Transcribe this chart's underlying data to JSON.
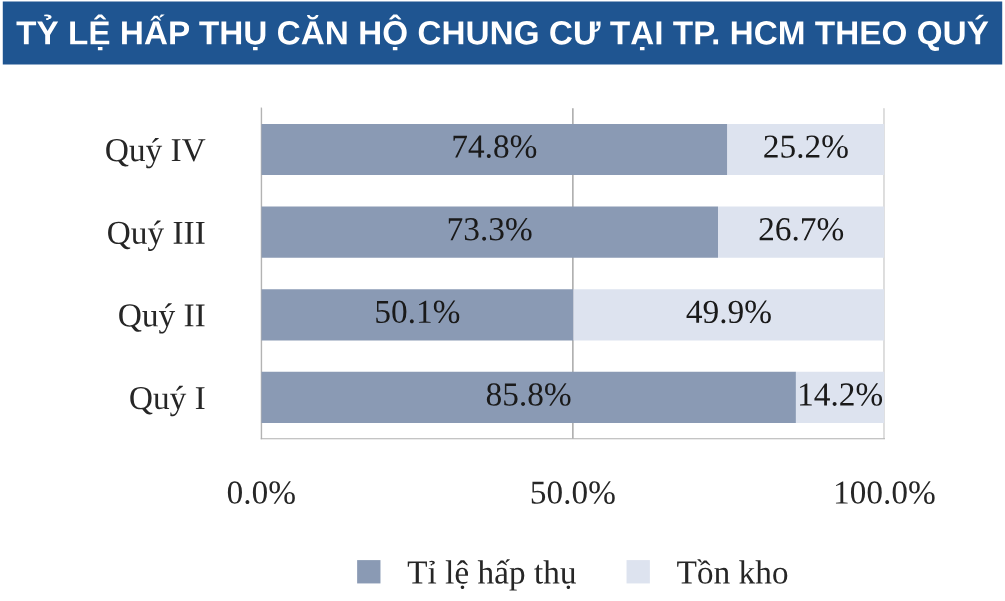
{
  "chart_data": {
    "type": "bar",
    "orientation": "horizontal",
    "stacked": true,
    "title": "TỶ LỆ HẤP THỤ CĂN HỘ CHUNG CƯ TẠI TP. HCM THEO QUÝ",
    "categories": [
      "Quý IV",
      "Quý III",
      "Quý II",
      "Quý I"
    ],
    "series": [
      {
        "name": "Tỉ lệ hấp thụ",
        "color": "#8a9ab4",
        "values": [
          74.8,
          73.3,
          50.1,
          85.8
        ],
        "value_labels": [
          "74.8%",
          "73.3%",
          "50.1%",
          "85.8%"
        ]
      },
      {
        "name": "Tồn kho",
        "color": "#dde3ef",
        "values": [
          25.2,
          26.7,
          49.9,
          14.2
        ],
        "value_labels": [
          "25.2%",
          "26.7%",
          "49.9%",
          "14.2%"
        ]
      }
    ],
    "xlim": [
      0,
      100
    ],
    "xticks": [
      {
        "value": 0,
        "label": "0.0%"
      },
      {
        "value": 50,
        "label": "50.0%"
      },
      {
        "value": 100,
        "label": "100.0%"
      }
    ],
    "grid": "x",
    "legend": "bottom"
  }
}
